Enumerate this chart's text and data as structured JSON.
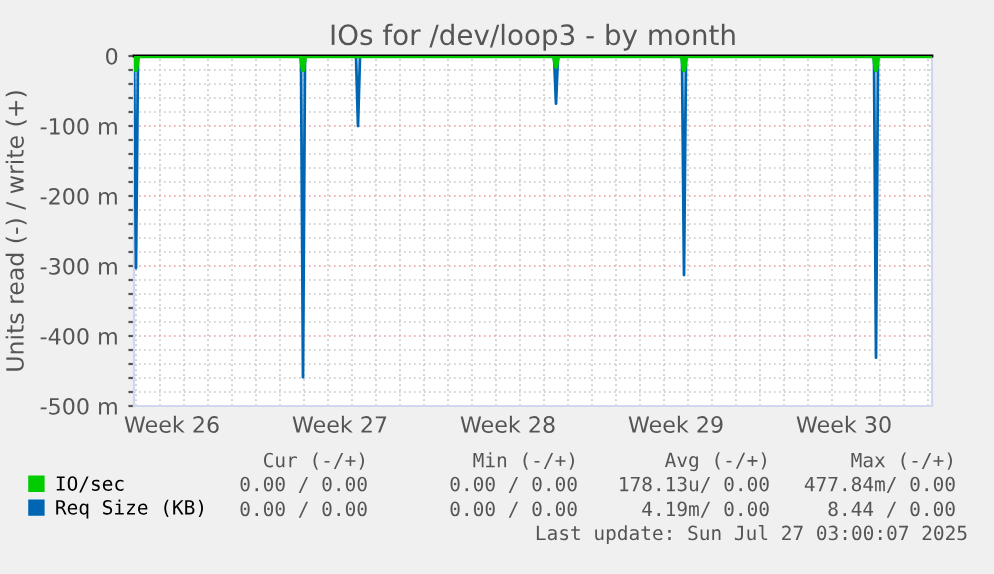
{
  "chart_data": {
    "type": "line",
    "title": "IOs for /dev/loop3 - by month",
    "ylabel": "Units read (-) / write (+)",
    "xlim": [
      "2025-06-24T22:00",
      "2025-07-28T04:00"
    ],
    "xticks": [
      {
        "value": "2025-06-26T12:00",
        "label": "Week 26"
      },
      {
        "value": "2025-07-03T12:00",
        "label": "Week 27"
      },
      {
        "value": "2025-07-10T12:00",
        "label": "Week 28"
      },
      {
        "value": "2025-07-17T12:00",
        "label": "Week 29"
      },
      {
        "value": "2025-07-24T12:00",
        "label": "Week 30"
      },
      {
        "value": "2025-06-25",
        "label": null
      },
      {
        "value": "2025-06-26",
        "label": null
      },
      {
        "value": "2025-06-27",
        "label": null
      },
      {
        "value": "2025-06-28",
        "label": null
      },
      {
        "value": "2025-06-29",
        "label": null
      },
      {
        "value": "2025-06-30",
        "label": null
      },
      {
        "value": "2025-07-01",
        "label": null
      },
      {
        "value": "2025-07-02",
        "label": null
      },
      {
        "value": "2025-07-03",
        "label": null
      },
      {
        "value": "2025-07-04",
        "label": null
      },
      {
        "value": "2025-07-05",
        "label": null
      },
      {
        "value": "2025-07-06",
        "label": null
      },
      {
        "value": "2025-07-07",
        "label": null
      },
      {
        "value": "2025-07-08",
        "label": null
      },
      {
        "value": "2025-07-09",
        "label": null
      },
      {
        "value": "2025-07-10",
        "label": null
      },
      {
        "value": "2025-07-11",
        "label": null
      },
      {
        "value": "2025-07-12",
        "label": null
      },
      {
        "value": "2025-07-13",
        "label": null
      },
      {
        "value": "2025-07-14",
        "label": null
      },
      {
        "value": "2025-07-15",
        "label": null
      },
      {
        "value": "2025-07-16",
        "label": null
      },
      {
        "value": "2025-07-17",
        "label": null
      },
      {
        "value": "2025-07-18",
        "label": null
      },
      {
        "value": "2025-07-19",
        "label": null
      },
      {
        "value": "2025-07-20",
        "label": null
      },
      {
        "value": "2025-07-21",
        "label": null
      },
      {
        "value": "2025-07-22",
        "label": null
      },
      {
        "value": "2025-07-23",
        "label": null
      },
      {
        "value": "2025-07-24",
        "label": null
      },
      {
        "value": "2025-07-25",
        "label": null
      },
      {
        "value": "2025-07-26",
        "label": null
      },
      {
        "value": "2025-07-27",
        "label": null
      },
      {
        "value": "2025-07-28",
        "label": null
      }
    ],
    "ylim": [
      -500,
      0
    ],
    "yticks": [
      {
        "value": 0,
        "label": "0"
      },
      {
        "value": -100,
        "label": "-100 m"
      },
      {
        "value": -200,
        "label": "-200 m"
      },
      {
        "value": -300,
        "label": "-300 m"
      },
      {
        "value": -400,
        "label": "-400 m"
      },
      {
        "value": -500,
        "label": "-500 m"
      },
      {
        "value": -20,
        "label": null
      },
      {
        "value": -40,
        "label": null
      },
      {
        "value": -60,
        "label": null
      },
      {
        "value": -80,
        "label": null
      },
      {
        "value": -120,
        "label": null
      },
      {
        "value": -140,
        "label": null
      },
      {
        "value": -160,
        "label": null
      },
      {
        "value": -180,
        "label": null
      },
      {
        "value": -220,
        "label": null
      },
      {
        "value": -240,
        "label": null
      },
      {
        "value": -260,
        "label": null
      },
      {
        "value": -280,
        "label": null
      },
      {
        "value": -320,
        "label": null
      },
      {
        "value": -340,
        "label": null
      },
      {
        "value": -360,
        "label": null
      },
      {
        "value": -380,
        "label": null
      },
      {
        "value": -420,
        "label": null
      },
      {
        "value": -440,
        "label": null
      },
      {
        "value": -460,
        "label": null
      },
      {
        "value": -480,
        "label": null
      }
    ],
    "grid": true,
    "legend": "bottom",
    "marker": "none",
    "line_style": "solid",
    "ref_lines": [
      {
        "axis": "y",
        "value": 0,
        "color": "#000000"
      }
    ],
    "series": [
      {
        "name": "IO/sec",
        "color": "#00cc00",
        "x": [
          "2025-06-24T22:00",
          "2025-06-25T00:00",
          "2025-06-25T02:00",
          "2025-07-01T21:00",
          "2025-07-01T23:00",
          "2025-07-02T01:00",
          "2025-07-12T10:00",
          "2025-07-12T12:00",
          "2025-07-12T14:00",
          "2025-07-17T18:00",
          "2025-07-17T20:00",
          "2025-07-17T22:00",
          "2025-07-25T18:00",
          "2025-07-25T20:00",
          "2025-07-25T22:00",
          "2025-07-28T04:00"
        ],
        "values": [
          0,
          -20,
          0,
          0,
          -20,
          0,
          0,
          -15,
          0,
          0,
          -20,
          0,
          0,
          -20,
          0,
          0
        ]
      },
      {
        "name": "Req Size (KB)",
        "color": "#0066b3",
        "x": [
          "2025-06-24T22:00",
          "2025-06-25T00:00",
          "2025-06-25T02:00",
          "2025-07-01T21:00",
          "2025-07-01T23:00",
          "2025-07-02T01:00",
          "2025-07-04T04:00",
          "2025-07-04T06:00",
          "2025-07-04T08:00",
          "2025-07-12T10:00",
          "2025-07-12T12:00",
          "2025-07-12T14:00",
          "2025-07-17T18:00",
          "2025-07-17T20:00",
          "2025-07-17T22:00",
          "2025-07-25T18:00",
          "2025-07-25T20:00",
          "2025-07-25T22:00",
          "2025-07-28T04:00"
        ],
        "values": [
          0,
          -303,
          0,
          0,
          -459,
          0,
          0,
          -100,
          0,
          0,
          -68,
          0,
          0,
          -313,
          0,
          0,
          -431,
          0,
          0
        ]
      }
    ],
    "annotations": [
      "Cur (-/+)",
      "Min (-/+)",
      "Avg (-/+)",
      "Max (-/+)",
      "0.00 / 0.00",
      "0.00 / 0.00",
      "178.13u/ 0.00",
      "477.84m/ 0.00",
      "0.00 / 0.00",
      "0.00 / 0.00",
      "4.19m/ 0.00",
      "8.44 / 0.00",
      "Last update: Sun Jul 27 03:00:07 2025"
    ]
  }
}
